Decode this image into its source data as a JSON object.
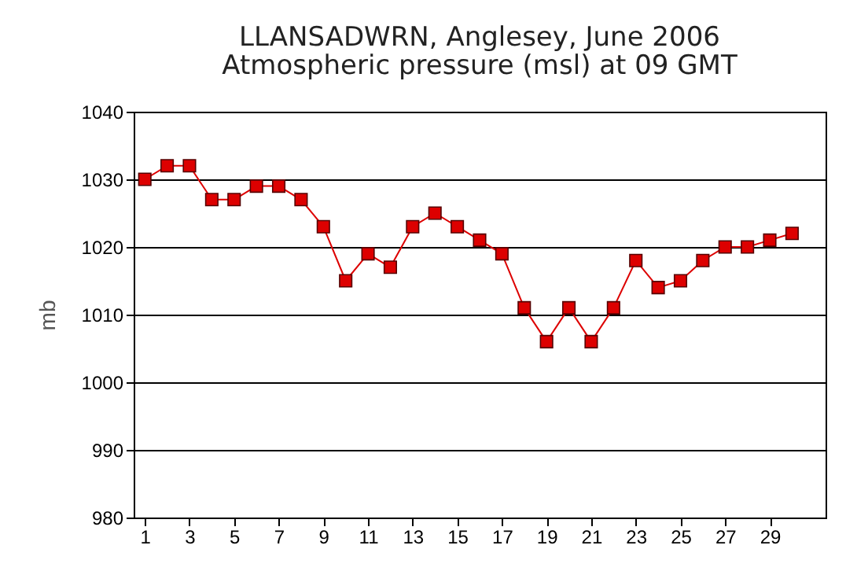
{
  "chart_data": {
    "type": "line",
    "title": "LLANSADWRN, Anglesey,  June 2006",
    "subtitle": "Atmospheric pressure  (msl) at 09 GMT",
    "ylabel": "mb",
    "x": [
      1,
      2,
      3,
      4,
      5,
      6,
      7,
      8,
      9,
      10,
      11,
      12,
      13,
      14,
      15,
      16,
      17,
      18,
      19,
      20,
      21,
      22,
      23,
      24,
      25,
      26,
      27,
      28,
      29,
      30
    ],
    "series": [
      {
        "color": "#dd0000",
        "values": [
          1030,
          1032,
          1032,
          1027,
          1027,
          1029,
          1029,
          1027,
          1023,
          1015,
          1019,
          1017,
          1023,
          1025,
          1023,
          1021,
          1019,
          1011,
          1006,
          1011,
          1006,
          1011,
          1018,
          1014,
          1015,
          1018,
          1020,
          1020,
          1021,
          1022
        ]
      }
    ],
    "xlim": [
      0.5,
      31.5
    ],
    "xticks": [
      1,
      3,
      5,
      7,
      9,
      11,
      13,
      15,
      17,
      19,
      21,
      23,
      25,
      27,
      29
    ],
    "ylim": [
      980,
      1040
    ],
    "yticks": [
      980,
      990,
      1000,
      1010,
      1020,
      1030,
      1040
    ],
    "grid": "y",
    "marker": "square",
    "line_style": "solid"
  }
}
